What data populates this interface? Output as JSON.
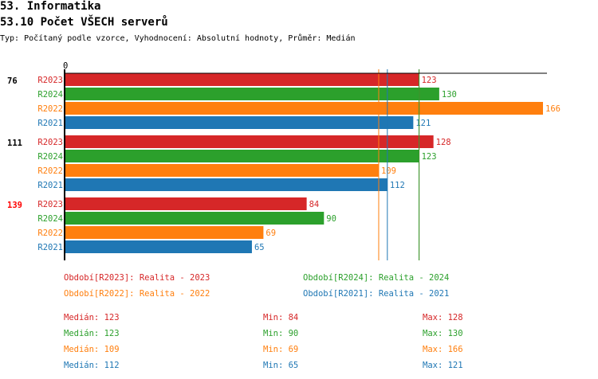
{
  "header": {
    "section": "53. Informatika",
    "title": "53.10 Počet VŠECH serverů",
    "subtitle": "Typ: Počítaný podle vzorce, Vyhodnocení: Absolutní hodnoty, Průměr: Medián"
  },
  "chart_data": {
    "type": "bar",
    "orientation": "horizontal",
    "x_tick_label": "0",
    "xlim": [
      0,
      166
    ],
    "groups": [
      {
        "label": "76",
        "highlight": false
      },
      {
        "label": "111",
        "highlight": false
      },
      {
        "label": "139",
        "highlight": true
      }
    ],
    "series": [
      {
        "name": "R2023",
        "color": "#d62728",
        "values": [
          123,
          128,
          84
        ]
      },
      {
        "name": "R2024",
        "color": "#2ca02c",
        "values": [
          130,
          123,
          90
        ]
      },
      {
        "name": "R2022",
        "color": "#ff7f0e",
        "values": [
          166,
          109,
          69
        ]
      },
      {
        "name": "R2021",
        "color": "#1f77b4",
        "values": [
          121,
          112,
          65
        ]
      }
    ],
    "median_lines": [
      {
        "series": "R2023",
        "value": 123,
        "color": "#d62728"
      },
      {
        "series": "R2024",
        "value": 123,
        "color": "#2ca02c"
      },
      {
        "series": "R2022",
        "value": 109,
        "color": "#ff7f0e"
      },
      {
        "series": "R2021",
        "value": 112,
        "color": "#1f77b4"
      }
    ],
    "legend": [
      {
        "text": "Období[R2023]: Realita - 2023",
        "color": "#d62728"
      },
      {
        "text": "Období[R2024]: Realita - 2024",
        "color": "#2ca02c"
      },
      {
        "text": "Období[R2022]: Realita - 2022",
        "color": "#ff7f0e"
      },
      {
        "text": "Období[R2021]: Realita - 2021",
        "color": "#1f77b4"
      }
    ],
    "stats": [
      {
        "median": "Medián: 123",
        "min": "Min: 84",
        "max": "Max: 128",
        "color": "#d62728"
      },
      {
        "median": "Medián: 123",
        "min": "Min: 90",
        "max": "Max: 130",
        "color": "#2ca02c"
      },
      {
        "median": "Medián: 109",
        "min": "Min: 69",
        "max": "Max: 166",
        "color": "#ff7f0e"
      },
      {
        "median": "Medián: 112",
        "min": "Min: 65",
        "max": "Max: 121",
        "color": "#1f77b4"
      }
    ],
    "highlight_color": "#ff0000"
  }
}
